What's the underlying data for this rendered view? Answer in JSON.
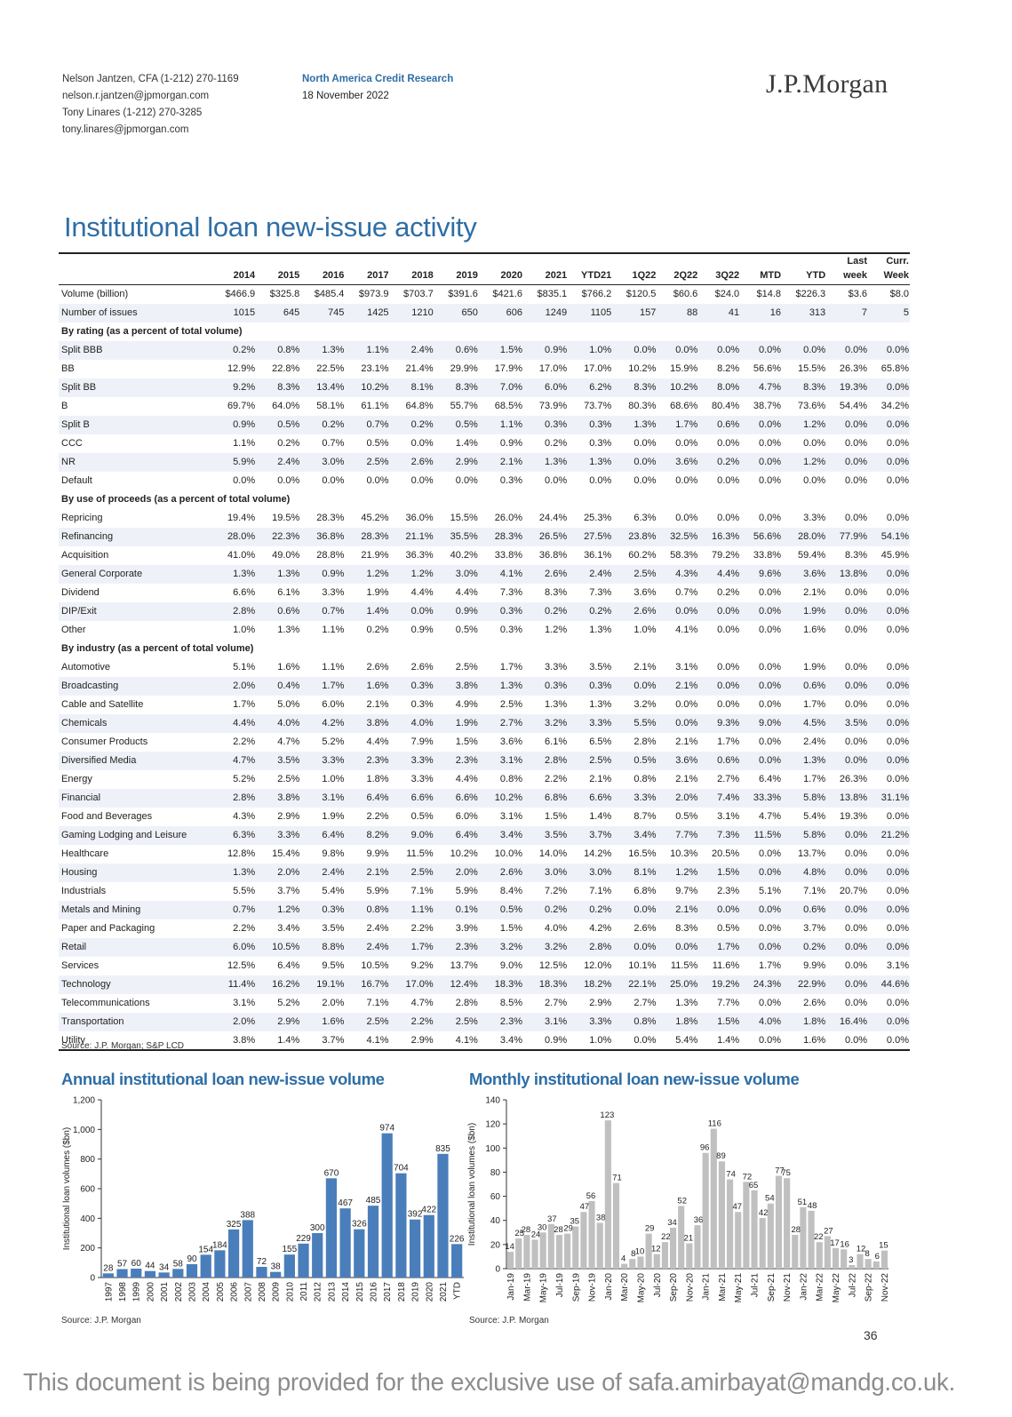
{
  "header": {
    "authors": [
      "Nelson Jantzen, CFA (1-212) 270-1169",
      "nelson.r.jantzen@jpmorgan.com",
      "Tony Linares (1-212) 270-3285",
      "tony.linares@jpmorgan.com"
    ],
    "department": "North America Credit Research",
    "date": "18 November 2022",
    "logo": "J.P.Morgan"
  },
  "title": "Institutional loan new-issue activity",
  "table": {
    "columns": [
      "2014",
      "2015",
      "2016",
      "2017",
      "2018",
      "2019",
      "2020",
      "2021",
      "YTD21",
      "1Q22",
      "2Q22",
      "3Q22",
      "MTD",
      "YTD",
      [
        "Last",
        "week"
      ],
      [
        "Curr.",
        "Week"
      ]
    ],
    "rows": [
      {
        "label": "Volume (billion)",
        "values": [
          "$466.9",
          "$325.8",
          "$485.4",
          "$973.9",
          "$703.7",
          "$391.6",
          "$421.6",
          "$835.1",
          "$766.2",
          "$120.5",
          "$60.6",
          "$24.0",
          "$14.8",
          "$226.3",
          "$3.6",
          "$8.0"
        ]
      },
      {
        "label": "Number of issues",
        "values": [
          "1015",
          "645",
          "745",
          "1425",
          "1210",
          "650",
          "606",
          "1249",
          "1105",
          "157",
          "88",
          "41",
          "16",
          "313",
          "7",
          "5"
        ]
      },
      {
        "label": "By rating (as a percent of total volume)",
        "section": true
      },
      {
        "label": "Split BBB",
        "values": [
          "0.2%",
          "0.8%",
          "1.3%",
          "1.1%",
          "2.4%",
          "0.6%",
          "1.5%",
          "0.9%",
          "1.0%",
          "0.0%",
          "0.0%",
          "0.0%",
          "0.0%",
          "0.0%",
          "0.0%",
          "0.0%"
        ]
      },
      {
        "label": "BB",
        "values": [
          "12.9%",
          "22.8%",
          "22.5%",
          "23.1%",
          "21.4%",
          "29.9%",
          "17.9%",
          "17.0%",
          "17.0%",
          "10.2%",
          "15.9%",
          "8.2%",
          "56.6%",
          "15.5%",
          "26.3%",
          "65.8%"
        ]
      },
      {
        "label": "Split BB",
        "values": [
          "9.2%",
          "8.3%",
          "13.4%",
          "10.2%",
          "8.1%",
          "8.3%",
          "7.0%",
          "6.0%",
          "6.2%",
          "8.3%",
          "10.2%",
          "8.0%",
          "4.7%",
          "8.3%",
          "19.3%",
          "0.0%"
        ]
      },
      {
        "label": "B",
        "values": [
          "69.7%",
          "64.0%",
          "58.1%",
          "61.1%",
          "64.8%",
          "55.7%",
          "68.5%",
          "73.9%",
          "73.7%",
          "80.3%",
          "68.6%",
          "80.4%",
          "38.7%",
          "73.6%",
          "54.4%",
          "34.2%"
        ]
      },
      {
        "label": "Split B",
        "values": [
          "0.9%",
          "0.5%",
          "0.2%",
          "0.7%",
          "0.2%",
          "0.5%",
          "1.1%",
          "0.3%",
          "0.3%",
          "1.3%",
          "1.7%",
          "0.6%",
          "0.0%",
          "1.2%",
          "0.0%",
          "0.0%"
        ]
      },
      {
        "label": "CCC",
        "values": [
          "1.1%",
          "0.2%",
          "0.7%",
          "0.5%",
          "0.0%",
          "1.4%",
          "0.9%",
          "0.2%",
          "0.3%",
          "0.0%",
          "0.0%",
          "0.0%",
          "0.0%",
          "0.0%",
          "0.0%",
          "0.0%"
        ]
      },
      {
        "label": "NR",
        "values": [
          "5.9%",
          "2.4%",
          "3.0%",
          "2.5%",
          "2.6%",
          "2.9%",
          "2.1%",
          "1.3%",
          "1.3%",
          "0.0%",
          "3.6%",
          "0.2%",
          "0.0%",
          "1.2%",
          "0.0%",
          "0.0%"
        ]
      },
      {
        "label": "Default",
        "values": [
          "0.0%",
          "0.0%",
          "0.0%",
          "0.0%",
          "0.0%",
          "0.0%",
          "0.3%",
          "0.0%",
          "0.0%",
          "0.0%",
          "0.0%",
          "0.0%",
          "0.0%",
          "0.0%",
          "0.0%",
          "0.0%"
        ]
      },
      {
        "label": "By use of proceeds (as a percent of total volume)",
        "section": true
      },
      {
        "label": "Repricing",
        "values": [
          "19.4%",
          "19.5%",
          "28.3%",
          "45.2%",
          "36.0%",
          "15.5%",
          "26.0%",
          "24.4%",
          "25.3%",
          "6.3%",
          "0.0%",
          "0.0%",
          "0.0%",
          "3.3%",
          "0.0%",
          "0.0%"
        ]
      },
      {
        "label": "Refinancing",
        "values": [
          "28.0%",
          "22.3%",
          "36.8%",
          "28.3%",
          "21.1%",
          "35.5%",
          "28.3%",
          "26.5%",
          "27.5%",
          "23.8%",
          "32.5%",
          "16.3%",
          "56.6%",
          "28.0%",
          "77.9%",
          "54.1%"
        ]
      },
      {
        "label": "Acquisition",
        "values": [
          "41.0%",
          "49.0%",
          "28.8%",
          "21.9%",
          "36.3%",
          "40.2%",
          "33.8%",
          "36.8%",
          "36.1%",
          "60.2%",
          "58.3%",
          "79.2%",
          "33.8%",
          "59.4%",
          "8.3%",
          "45.9%"
        ]
      },
      {
        "label": "General Corporate",
        "values": [
          "1.3%",
          "1.3%",
          "0.9%",
          "1.2%",
          "1.2%",
          "3.0%",
          "4.1%",
          "2.6%",
          "2.4%",
          "2.5%",
          "4.3%",
          "4.4%",
          "9.6%",
          "3.6%",
          "13.8%",
          "0.0%"
        ]
      },
      {
        "label": "Dividend",
        "values": [
          "6.6%",
          "6.1%",
          "3.3%",
          "1.9%",
          "4.4%",
          "4.4%",
          "7.3%",
          "8.3%",
          "7.3%",
          "3.6%",
          "0.7%",
          "0.2%",
          "0.0%",
          "2.1%",
          "0.0%",
          "0.0%"
        ]
      },
      {
        "label": "DIP/Exit",
        "values": [
          "2.8%",
          "0.6%",
          "0.7%",
          "1.4%",
          "0.0%",
          "0.9%",
          "0.3%",
          "0.2%",
          "0.2%",
          "2.6%",
          "0.0%",
          "0.0%",
          "0.0%",
          "1.9%",
          "0.0%",
          "0.0%"
        ]
      },
      {
        "label": "Other",
        "values": [
          "1.0%",
          "1.3%",
          "1.1%",
          "0.2%",
          "0.9%",
          "0.5%",
          "0.3%",
          "1.2%",
          "1.3%",
          "1.0%",
          "4.1%",
          "0.0%",
          "0.0%",
          "1.6%",
          "0.0%",
          "0.0%"
        ]
      },
      {
        "label": "By industry (as a percent of total volume)",
        "section": true
      },
      {
        "label": "Automotive",
        "values": [
          "5.1%",
          "1.6%",
          "1.1%",
          "2.6%",
          "2.6%",
          "2.5%",
          "1.7%",
          "3.3%",
          "3.5%",
          "2.1%",
          "3.1%",
          "0.0%",
          "0.0%",
          "1.9%",
          "0.0%",
          "0.0%"
        ]
      },
      {
        "label": "Broadcasting",
        "values": [
          "2.0%",
          "0.4%",
          "1.7%",
          "1.6%",
          "0.3%",
          "3.8%",
          "1.3%",
          "0.3%",
          "0.3%",
          "0.0%",
          "2.1%",
          "0.0%",
          "0.0%",
          "0.6%",
          "0.0%",
          "0.0%"
        ]
      },
      {
        "label": "Cable and Satellite",
        "values": [
          "1.7%",
          "5.0%",
          "6.0%",
          "2.1%",
          "0.3%",
          "4.9%",
          "2.5%",
          "1.3%",
          "1.3%",
          "3.2%",
          "0.0%",
          "0.0%",
          "0.0%",
          "1.7%",
          "0.0%",
          "0.0%"
        ]
      },
      {
        "label": "Chemicals",
        "values": [
          "4.4%",
          "4.0%",
          "4.2%",
          "3.8%",
          "4.0%",
          "1.9%",
          "2.7%",
          "3.2%",
          "3.3%",
          "5.5%",
          "0.0%",
          "9.3%",
          "9.0%",
          "4.5%",
          "3.5%",
          "0.0%"
        ]
      },
      {
        "label": "Consumer Products",
        "values": [
          "2.2%",
          "4.7%",
          "5.2%",
          "4.4%",
          "7.9%",
          "1.5%",
          "3.6%",
          "6.1%",
          "6.5%",
          "2.8%",
          "2.1%",
          "1.7%",
          "0.0%",
          "2.4%",
          "0.0%",
          "0.0%"
        ]
      },
      {
        "label": "Diversified Media",
        "values": [
          "4.7%",
          "3.5%",
          "3.3%",
          "2.3%",
          "3.3%",
          "2.3%",
          "3.1%",
          "2.8%",
          "2.5%",
          "0.5%",
          "3.6%",
          "0.6%",
          "0.0%",
          "1.3%",
          "0.0%",
          "0.0%"
        ]
      },
      {
        "label": "Energy",
        "values": [
          "5.2%",
          "2.5%",
          "1.0%",
          "1.8%",
          "3.3%",
          "4.4%",
          "0.8%",
          "2.2%",
          "2.1%",
          "0.8%",
          "2.1%",
          "2.7%",
          "6.4%",
          "1.7%",
          "26.3%",
          "0.0%"
        ]
      },
      {
        "label": "Financial",
        "values": [
          "2.8%",
          "3.8%",
          "3.1%",
          "6.4%",
          "6.6%",
          "6.6%",
          "10.2%",
          "6.8%",
          "6.6%",
          "3.3%",
          "2.0%",
          "7.4%",
          "33.3%",
          "5.8%",
          "13.8%",
          "31.1%"
        ]
      },
      {
        "label": "Food and Beverages",
        "values": [
          "4.3%",
          "2.9%",
          "1.9%",
          "2.2%",
          "0.5%",
          "6.0%",
          "3.1%",
          "1.5%",
          "1.4%",
          "8.7%",
          "0.5%",
          "3.1%",
          "4.7%",
          "5.4%",
          "19.3%",
          "0.0%"
        ]
      },
      {
        "label": "Gaming Lodging and Leisure",
        "values": [
          "6.3%",
          "3.3%",
          "6.4%",
          "8.2%",
          "9.0%",
          "6.4%",
          "3.4%",
          "3.5%",
          "3.7%",
          "3.4%",
          "7.7%",
          "7.3%",
          "11.5%",
          "5.8%",
          "0.0%",
          "21.2%"
        ]
      },
      {
        "label": "Healthcare",
        "values": [
          "12.8%",
          "15.4%",
          "9.8%",
          "9.9%",
          "11.5%",
          "10.2%",
          "10.0%",
          "14.0%",
          "14.2%",
          "16.5%",
          "10.3%",
          "20.5%",
          "0.0%",
          "13.7%",
          "0.0%",
          "0.0%"
        ]
      },
      {
        "label": "Housing",
        "values": [
          "1.3%",
          "2.0%",
          "2.4%",
          "2.1%",
          "2.5%",
          "2.0%",
          "2.6%",
          "3.0%",
          "3.0%",
          "8.1%",
          "1.2%",
          "1.5%",
          "0.0%",
          "4.8%",
          "0.0%",
          "0.0%"
        ]
      },
      {
        "label": "Industrials",
        "values": [
          "5.5%",
          "3.7%",
          "5.4%",
          "5.9%",
          "7.1%",
          "5.9%",
          "8.4%",
          "7.2%",
          "7.1%",
          "6.8%",
          "9.7%",
          "2.3%",
          "5.1%",
          "7.1%",
          "20.7%",
          "0.0%"
        ]
      },
      {
        "label": "Metals and Mining",
        "values": [
          "0.7%",
          "1.2%",
          "0.3%",
          "0.8%",
          "1.1%",
          "0.1%",
          "0.5%",
          "0.2%",
          "0.2%",
          "0.0%",
          "2.1%",
          "0.0%",
          "0.0%",
          "0.6%",
          "0.0%",
          "0.0%"
        ]
      },
      {
        "label": "Paper and Packaging",
        "values": [
          "2.2%",
          "3.4%",
          "3.5%",
          "2.4%",
          "2.2%",
          "3.9%",
          "1.5%",
          "4.0%",
          "4.2%",
          "2.6%",
          "8.3%",
          "0.5%",
          "0.0%",
          "3.7%",
          "0.0%",
          "0.0%"
        ]
      },
      {
        "label": "Retail",
        "values": [
          "6.0%",
          "10.5%",
          "8.8%",
          "2.4%",
          "1.7%",
          "2.3%",
          "3.2%",
          "3.2%",
          "2.8%",
          "0.0%",
          "0.0%",
          "1.7%",
          "0.0%",
          "0.2%",
          "0.0%",
          "0.0%"
        ]
      },
      {
        "label": "Services",
        "values": [
          "12.5%",
          "6.4%",
          "9.5%",
          "10.5%",
          "9.2%",
          "13.7%",
          "9.0%",
          "12.5%",
          "12.0%",
          "10.1%",
          "11.5%",
          "11.6%",
          "1.7%",
          "9.9%",
          "0.0%",
          "3.1%"
        ]
      },
      {
        "label": "Technology",
        "values": [
          "11.4%",
          "16.2%",
          "19.1%",
          "16.7%",
          "17.0%",
          "12.4%",
          "18.3%",
          "18.3%",
          "18.2%",
          "22.1%",
          "25.0%",
          "19.2%",
          "24.3%",
          "22.9%",
          "0.0%",
          "44.6%"
        ]
      },
      {
        "label": "Telecommunications",
        "values": [
          "3.1%",
          "5.2%",
          "2.0%",
          "7.1%",
          "4.7%",
          "2.8%",
          "8.5%",
          "2.7%",
          "2.9%",
          "2.7%",
          "1.3%",
          "7.7%",
          "0.0%",
          "2.6%",
          "0.0%",
          "0.0%"
        ]
      },
      {
        "label": "Transportation",
        "values": [
          "2.0%",
          "2.9%",
          "1.6%",
          "2.5%",
          "2.2%",
          "2.5%",
          "2.3%",
          "3.1%",
          "3.3%",
          "0.8%",
          "1.8%",
          "1.5%",
          "4.0%",
          "1.8%",
          "16.4%",
          "0.0%"
        ]
      },
      {
        "label": "Utility",
        "values": [
          "3.8%",
          "1.4%",
          "3.7%",
          "4.1%",
          "2.9%",
          "4.1%",
          "3.4%",
          "0.9%",
          "1.0%",
          "0.0%",
          "5.4%",
          "1.4%",
          "0.0%",
          "1.6%",
          "0.0%",
          "0.0%"
        ]
      }
    ],
    "source": "Source: J.P. Morgan; S&P LCD"
  },
  "chart_data": [
    {
      "type": "bar",
      "title": "Annual institutional loan new-issue volume",
      "ylabel": "Institutional loan volumes ($bn)",
      "ylim": [
        0,
        1200
      ],
      "yticks": [
        "0",
        "200",
        "400",
        "600",
        "800",
        "1,000",
        "1,200"
      ],
      "categories": [
        "1997",
        "1998",
        "1999",
        "2000",
        "2001",
        "2002",
        "2003",
        "2004",
        "2005",
        "2006",
        "2007",
        "2008",
        "2009",
        "2010",
        "2011",
        "2012",
        "2013",
        "2014",
        "2015",
        "2016",
        "2017",
        "2018",
        "2019",
        "2020",
        "2021",
        "YTD"
      ],
      "values": [
        28,
        57,
        60,
        44,
        34,
        58,
        90,
        154,
        184,
        325,
        388,
        72,
        38,
        155,
        229,
        300,
        670,
        467,
        326,
        485,
        974,
        704,
        392,
        422,
        835,
        226
      ],
      "color": "#4a7ebb",
      "source": "Source: J.P. Morgan"
    },
    {
      "type": "bar",
      "title": "Monthly institutional loan new-issue volume",
      "ylabel": "Institutional loan volumes ($bn)",
      "ylim": [
        0,
        140
      ],
      "yticks": [
        "0",
        "20",
        "40",
        "60",
        "80",
        "100",
        "120",
        "140"
      ],
      "categories": [
        "Jan-19",
        "Feb-19",
        "Mar-19",
        "Apr-19",
        "May-19",
        "Jun-19",
        "Jul-19",
        "Aug-19",
        "Sep-19",
        "Oct-19",
        "Nov-19",
        "Dec-19",
        "Jan-20",
        "Feb-20",
        "Mar-20",
        "Apr-20",
        "May-20",
        "Jun-20",
        "Jul-20",
        "Aug-20",
        "Sep-20",
        "Oct-20",
        "Nov-20",
        "Dec-20",
        "Jan-21",
        "Feb-21",
        "Mar-21",
        "Apr-21",
        "May-21",
        "Jun-21",
        "Jul-21",
        "Aug-21",
        "Sep-21",
        "Oct-21",
        "Nov-21",
        "Dec-21",
        "Jan-22",
        "Feb-22",
        "Mar-22",
        "Apr-22",
        "May-22",
        "Jun-22",
        "Jul-22",
        "Aug-22",
        "Sep-22",
        "Oct-22",
        "Nov-22"
      ],
      "values": [
        14,
        25,
        28,
        24,
        30,
        37,
        28,
        29,
        35,
        47,
        56,
        38,
        123,
        71,
        4,
        8,
        10,
        29,
        12,
        22,
        34,
        52,
        21,
        36,
        96,
        116,
        89,
        74,
        47,
        72,
        65,
        42,
        54,
        77,
        75,
        28,
        51,
        48,
        22,
        27,
        17,
        16,
        3,
        12,
        8,
        6,
        15
      ],
      "xticks": [
        "Jan-19",
        "Mar-19",
        "May-19",
        "Jul-19",
        "Sep-19",
        "Nov-19",
        "Jan-20",
        "Mar-20",
        "May-20",
        "Jul-20",
        "Sep-20",
        "Nov-20",
        "Jan-21",
        "Mar-21",
        "May-21",
        "Jul-21",
        "Sep-21",
        "Nov-21",
        "Jan-22",
        "Mar-22",
        "May-22",
        "Jul-22",
        "Sep-22",
        "Nov-22"
      ],
      "color": "#c0c0c0",
      "source": "Source: J.P. Morgan"
    }
  ],
  "page_number": "36",
  "watermark": "This document is being provided for the exclusive use of safa.amirbayat@mandg.co.uk."
}
